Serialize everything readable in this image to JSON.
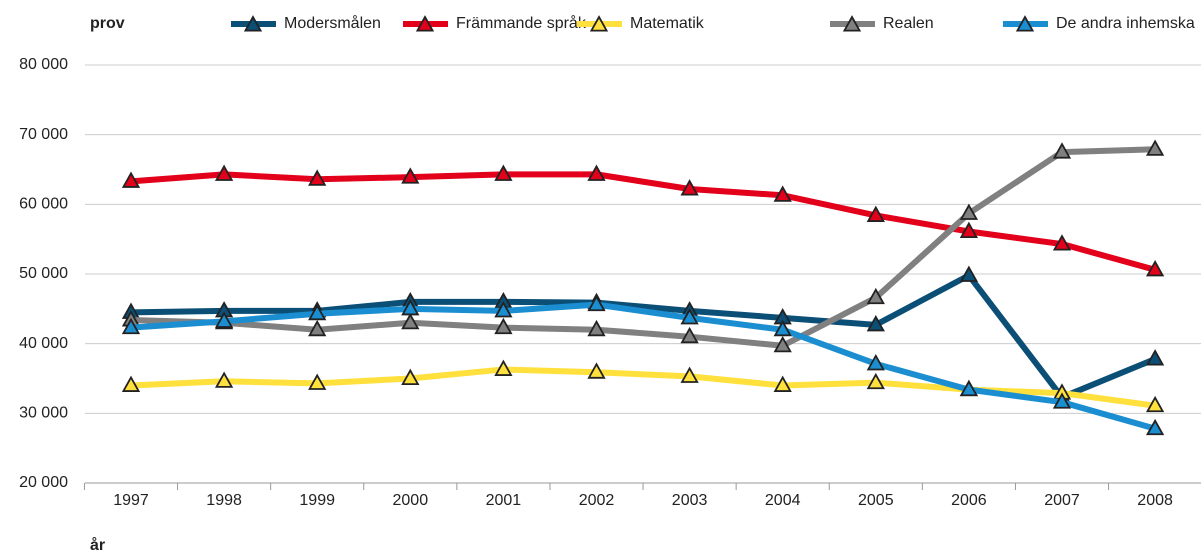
{
  "chart_data": {
    "type": "line",
    "y_label": "prov",
    "x_label": "år",
    "categories": [
      "1997",
      "1998",
      "1999",
      "2000",
      "2001",
      "2002",
      "2003",
      "2004",
      "2005",
      "2006",
      "2007",
      "2008"
    ],
    "series": [
      {
        "name": "Modersmålen",
        "color": "#0b4f77",
        "values": [
          44500,
          44700,
          44700,
          46000,
          46000,
          45900,
          44700,
          43700,
          42700,
          49800,
          32300,
          37800
        ]
      },
      {
        "name": "Främmande språk",
        "color": "#e2001a",
        "values": [
          63300,
          64300,
          63600,
          63900,
          64300,
          64300,
          62200,
          61300,
          58400,
          56100,
          54300,
          50600
        ]
      },
      {
        "name": "Matematik",
        "color": "#ffe03c",
        "values": [
          34000,
          34600,
          34300,
          35000,
          36300,
          35900,
          35300,
          34000,
          34400,
          33400,
          32900,
          31100
        ]
      },
      {
        "name": "Realen",
        "color": "#808080",
        "values": [
          43400,
          43000,
          42000,
          43000,
          42300,
          42000,
          41000,
          39700,
          46600,
          58700,
          67500,
          67900
        ]
      },
      {
        "name": "De andra inhemska",
        "color": "#1a8ed0",
        "values": [
          42300,
          43200,
          44300,
          45000,
          44700,
          45600,
          43700,
          42000,
          37100,
          33400,
          31600,
          27800
        ]
      }
    ],
    "ylim": [
      20000,
      80000
    ],
    "yticks": [
      {
        "value": 20000,
        "label": "20 000"
      },
      {
        "value": 30000,
        "label": "30 000"
      },
      {
        "value": 40000,
        "label": "40 000"
      },
      {
        "value": 50000,
        "label": "50 000"
      },
      {
        "value": 60000,
        "label": "60 000"
      },
      {
        "value": 70000,
        "label": "70 000"
      },
      {
        "value": 80000,
        "label": "80 000"
      }
    ],
    "grid": true
  }
}
